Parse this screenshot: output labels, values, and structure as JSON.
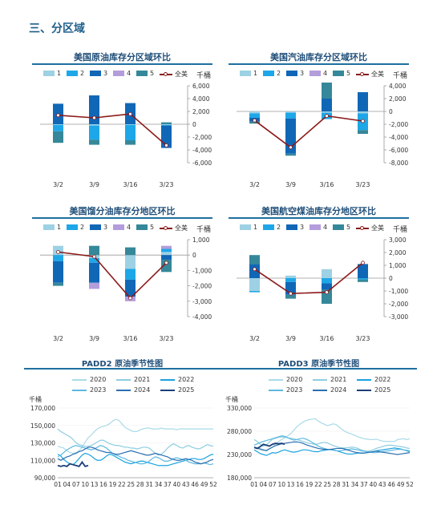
{
  "section_title": "三、分区域",
  "colors": {
    "d1": "#9dd1e3",
    "d2": "#1ea7e8",
    "d3": "#1067b6",
    "d4": "#b39ddb",
    "d5": "#35889a",
    "total": "#8b1a1a",
    "title_rule": "#1f6fa0"
  },
  "legend_labels": {
    "d1": "1",
    "d2": "2",
    "d3": "3",
    "d4": "4",
    "d5": "5",
    "total": "全美",
    "unit": "千桶"
  },
  "chart_data": [
    {
      "type": "bar",
      "title": "美国原油库存分区域环比",
      "categories": [
        "3/2",
        "3/9",
        "3/16",
        "3/23"
      ],
      "ylim": [
        -6000,
        6000
      ],
      "yticks": [
        6000,
        4000,
        2000,
        0,
        -2000,
        -4000,
        -6000
      ],
      "ytick_labels": [
        "6,000",
        "4,000",
        "2,000",
        "0",
        "-2,000",
        "-4,000",
        "-6,000"
      ],
      "series": [
        {
          "name": "1",
          "values": [
            -100,
            -200,
            -100,
            -100
          ]
        },
        {
          "name": "2",
          "values": [
            -1000,
            -2200,
            -2400,
            -100
          ]
        },
        {
          "name": "3",
          "values": [
            3200,
            4500,
            3300,
            -3500
          ]
        },
        {
          "name": "4",
          "values": [
            0,
            0,
            0,
            0
          ]
        },
        {
          "name": "5",
          "values": [
            -1800,
            -800,
            -700,
            300
          ]
        }
      ],
      "total": {
        "name": "全美",
        "values": [
          1400,
          1000,
          1600,
          -3300
        ]
      }
    },
    {
      "type": "bar",
      "title": "美国汽油库存分区域环比",
      "categories": [
        "3/2",
        "3/9",
        "3/16",
        "3/23"
      ],
      "ylim": [
        -8000,
        4000
      ],
      "yticks": [
        4000,
        2000,
        0,
        -2000,
        -4000,
        -6000,
        -8000
      ],
      "ytick_labels": [
        "4,000",
        "2,000",
        "0",
        "-2,000",
        "-4,000",
        "-6,000",
        "-8,000"
      ],
      "series": [
        {
          "name": "1",
          "values": [
            -300,
            -200,
            -200,
            -300
          ]
        },
        {
          "name": "2",
          "values": [
            -700,
            -900,
            -1000,
            -2600
          ]
        },
        {
          "name": "3",
          "values": [
            -600,
            -5500,
            2000,
            3000
          ]
        },
        {
          "name": "4",
          "values": [
            0,
            0,
            0,
            0
          ]
        },
        {
          "name": "5",
          "values": [
            -300,
            -300,
            2800,
            -600
          ]
        }
      ],
      "total": {
        "name": "全美",
        "values": [
          -1400,
          -5600,
          -700,
          -1500
        ]
      }
    },
    {
      "type": "bar",
      "title": "美国馏分油库存分地区环比",
      "categories": [
        "3/2",
        "3/9",
        "3/16",
        "3/23"
      ],
      "ylim": [
        -4000,
        1000
      ],
      "yticks": [
        1000,
        0,
        -1000,
        -2000,
        -3000,
        -4000
      ],
      "ytick_labels": [
        "1,000",
        "0",
        "-1,000",
        "-2,000",
        "-3,000",
        "-4,000"
      ],
      "series": [
        {
          "name": "1",
          "values": [
            600,
            -200,
            -900,
            200
          ]
        },
        {
          "name": "2",
          "values": [
            -400,
            -300,
            -700,
            200
          ]
        },
        {
          "name": "3",
          "values": [
            -1400,
            -1300,
            -1100,
            -300
          ]
        },
        {
          "name": "4",
          "values": [
            0,
            -400,
            -300,
            200
          ]
        },
        {
          "name": "5",
          "values": [
            -200,
            600,
            500,
            -800
          ]
        }
      ],
      "total": {
        "name": "全美",
        "values": [
          200,
          -100,
          -2800,
          -500
        ]
      }
    },
    {
      "type": "bar",
      "title": "美国航空煤油库存分地区环比",
      "categories": [
        "3/2",
        "3/9",
        "3/16",
        "3/23"
      ],
      "ylim": [
        -3000,
        3000
      ],
      "yticks": [
        3000,
        2000,
        1000,
        0,
        -1000,
        -2000,
        -3000
      ],
      "ytick_labels": [
        "3,000",
        "2,000",
        "1,000",
        "0",
        "-1,000",
        "-2,000",
        "-3,000"
      ],
      "series": [
        {
          "name": "1",
          "values": [
            -1000,
            200,
            700,
            0
          ]
        },
        {
          "name": "2",
          "values": [
            -100,
            -300,
            -400,
            -100
          ]
        },
        {
          "name": "3",
          "values": [
            1100,
            -1000,
            -500,
            1100
          ]
        },
        {
          "name": "4",
          "values": [
            0,
            0,
            0,
            0
          ]
        },
        {
          "name": "5",
          "values": [
            700,
            -300,
            -1100,
            -200
          ]
        }
      ],
      "total": {
        "name": "全美",
        "values": [
          700,
          -1200,
          -1100,
          1200
        ]
      }
    },
    {
      "type": "line",
      "title": "PADD2 原油季节性图",
      "ylabel": "千桶",
      "ylim": [
        90000,
        170000
      ],
      "yticks": [
        170000,
        150000,
        130000,
        110000,
        90000
      ],
      "ytick_labels": [
        "170,000",
        "150,000",
        "130,000",
        "110,000",
        "90,000"
      ],
      "x_ticks": [
        "01",
        "04",
        "07",
        "10",
        "13",
        "16",
        "19",
        "22",
        "25",
        "28",
        "31",
        "34",
        "37",
        "40",
        "43",
        "46",
        "49",
        "52"
      ],
      "series": [
        {
          "name": "2020",
          "values": [
            126000,
            125000,
            124000,
            121000,
            119000,
            118000,
            119000,
            121000,
            125000,
            131000,
            136000,
            139000,
            143000,
            146000,
            148000,
            149000,
            150000,
            152000,
            155000,
            157000,
            156000,
            152000,
            148000,
            146000,
            144000,
            143000,
            143000,
            145000,
            146000,
            147000,
            147000,
            146000,
            146000,
            146000,
            147000,
            146000,
            146000,
            146000,
            146000,
            145000,
            146000,
            146000,
            146000,
            146000,
            146000,
            146000,
            146000,
            146000,
            146000,
            146000,
            146000,
            146000
          ]
        },
        {
          "name": "2021",
          "values": [
            146000,
            143000,
            141000,
            139000,
            137000,
            134000,
            130000,
            128000,
            127000,
            126000,
            126000,
            127000,
            129000,
            131000,
            133000,
            133000,
            131000,
            129000,
            128000,
            127000,
            127000,
            126000,
            125000,
            125000,
            124000,
            124000,
            123000,
            124000,
            125000,
            125000,
            124000,
            121000,
            118000,
            116000,
            117000,
            120000,
            124000,
            127000,
            129000,
            127000,
            125000,
            124000,
            126000,
            127000,
            125000,
            124000,
            123000,
            124000,
            126000,
            128000,
            127000,
            126000
          ]
        },
        {
          "name": "2022",
          "values": [
            117000,
            115000,
            111000,
            108000,
            106000,
            105000,
            108000,
            112000,
            116000,
            118000,
            117000,
            115000,
            112000,
            110000,
            110000,
            112000,
            115000,
            117000,
            116000,
            114000,
            112000,
            110000,
            108000,
            107000,
            106000,
            107000,
            108000,
            109000,
            109000,
            108000,
            107000,
            106000,
            105000,
            104000,
            104000,
            104000,
            104000,
            105000,
            106000,
            107000,
            108000,
            109000,
            110000,
            111000,
            112000,
            112000,
            111000,
            111000,
            112000,
            114000,
            116000,
            117000
          ]
        },
        {
          "name": "2023",
          "values": [
            114000,
            116000,
            119000,
            122000,
            124000,
            126000,
            127000,
            126000,
            125000,
            124000,
            123000,
            122000,
            123000,
            125000,
            127000,
            126000,
            124000,
            121000,
            118000,
            116000,
            115000,
            113000,
            112000,
            110000,
            109000,
            108000,
            107000,
            106000,
            106000,
            107000,
            109000,
            112000,
            114000,
            113000,
            111000,
            109000,
            109000,
            110000,
            112000,
            113000,
            112000,
            111000,
            110000,
            108000,
            107000,
            106000,
            106000,
            106000,
            107000,
            106000,
            105000,
            106000
          ]
        },
        {
          "name": "2024",
          "values": [
            112000,
            110000,
            112000,
            114000,
            115000,
            117000,
            118000,
            120000,
            121000,
            123000,
            125000,
            125000,
            124000,
            122000,
            121000,
            120000,
            119000,
            119000,
            118000,
            117000,
            117000,
            118000,
            119000,
            120000,
            121000,
            120000,
            119000,
            118000,
            117000,
            116000,
            116000,
            117000,
            118000,
            117000,
            116000,
            115000,
            114000,
            112000,
            111000,
            110000,
            110000,
            111000,
            112000,
            111000,
            110000,
            108000,
            107000,
            106000,
            107000,
            108000,
            110000,
            111000
          ]
        },
        {
          "name": "2025",
          "values": [
            104000,
            103000,
            104000,
            103000,
            106000,
            105000,
            104000,
            103000,
            108000,
            103000,
            104000
          ]
        }
      ]
    },
    {
      "type": "line",
      "title": "PADD3 原油季节性图",
      "ylabel": "千桶",
      "ylim": [
        180000,
        330000
      ],
      "yticks": [
        330000,
        280000,
        230000,
        180000
      ],
      "ytick_labels": [
        "330,000",
        "280,000",
        "230,000",
        "180,000"
      ],
      "x_ticks": [
        "01",
        "04",
        "07",
        "10",
        "13",
        "16",
        "19",
        "22",
        "25",
        "28",
        "31",
        "34",
        "37",
        "40",
        "43",
        "46",
        "49",
        "52"
      ],
      "series": [
        {
          "name": "2020",
          "values": [
            245000,
            243000,
            240000,
            238000,
            240000,
            243000,
            245000,
            252000,
            258000,
            262000,
            266000,
            270000,
            275000,
            282000,
            290000,
            295000,
            300000,
            303000,
            305000,
            306000,
            307000,
            302000,
            298000,
            295000,
            292000,
            294000,
            296000,
            294000,
            288000,
            283000,
            279000,
            276000,
            274000,
            271000,
            268000,
            266000,
            264000,
            263000,
            262000,
            262000,
            263000,
            261000,
            259000,
            258000,
            258000,
            258000,
            258000,
            262000,
            263000,
            264000,
            262000,
            264000
          ]
        },
        {
          "name": "2021",
          "values": [
            262000,
            258000,
            252000,
            248000,
            250000,
            257000,
            263000,
            265000,
            267000,
            268000,
            267000,
            266000,
            265000,
            264000,
            262000,
            260000,
            258000,
            256000,
            254000,
            253000,
            252000,
            253000,
            255000,
            256000,
            255000,
            252000,
            249000,
            247000,
            245000,
            244000,
            244000,
            245000,
            246000,
            245000,
            243000,
            240000,
            238000,
            237000,
            238000,
            240000,
            243000,
            245000,
            247000,
            249000,
            250000,
            250000,
            249000,
            248000,
            247000,
            246000,
            244000,
            243000
          ]
        },
        {
          "name": "2022",
          "values": [
            240000,
            236000,
            232000,
            230000,
            228000,
            231000,
            234000,
            233000,
            235000,
            238000,
            240000,
            238000,
            236000,
            235000,
            236000,
            238000,
            240000,
            240000,
            239000,
            237000,
            236000,
            236000,
            238000,
            239000,
            240000,
            241000,
            240000,
            238000,
            236000,
            234000,
            232000,
            231000,
            231000,
            232000,
            233000,
            233000,
            233000,
            234000,
            235000,
            236000,
            238000,
            239000,
            240000,
            241000,
            242000,
            243000,
            244000,
            243000,
            242000,
            240000,
            238000,
            236000
          ]
        },
        {
          "name": "2023",
          "values": [
            250000,
            253000,
            256000,
            258000,
            260000,
            262000,
            264000,
            266000,
            268000,
            270000,
            269000,
            266000,
            263000,
            261000,
            262000,
            264000,
            265000,
            263000,
            260000,
            256000,
            252000,
            248000,
            245000,
            243000,
            241000,
            240000,
            239000,
            238000,
            238000,
            239000,
            240000,
            241000,
            242000,
            241000,
            240000,
            238000,
            237000,
            236000,
            235000,
            234000,
            234000,
            235000,
            236000,
            237000,
            238000,
            239000,
            240000,
            241000,
            241000,
            240000,
            239000,
            238000
          ]
        },
        {
          "name": "2024",
          "values": [
            246000,
            244000,
            242000,
            240000,
            238000,
            242000,
            246000,
            249000,
            251000,
            253000,
            254000,
            255000,
            256000,
            257000,
            257000,
            256000,
            254000,
            251000,
            249000,
            247000,
            245000,
            243000,
            242000,
            241000,
            241000,
            241000,
            242000,
            243000,
            243000,
            243000,
            241000,
            239000,
            237000,
            235000,
            234000,
            233000,
            233000,
            234000,
            235000,
            236000,
            237000,
            236000,
            235000,
            234000,
            233000,
            232000,
            231000,
            230000,
            231000,
            232000,
            233000,
            234000
          ]
        },
        {
          "name": "2025",
          "values": [
            245000,
            243000,
            247000,
            252000,
            250000,
            248000,
            252000,
            254000,
            253000,
            254000,
            252000
          ]
        }
      ]
    }
  ],
  "season_colors": {
    "2020": "#a9dbe8",
    "2021": "#8ccde0",
    "2022": "#1aa3e0",
    "2023": "#5cb8e0",
    "2024": "#2a6fb0",
    "2025": "#1a3e78"
  }
}
